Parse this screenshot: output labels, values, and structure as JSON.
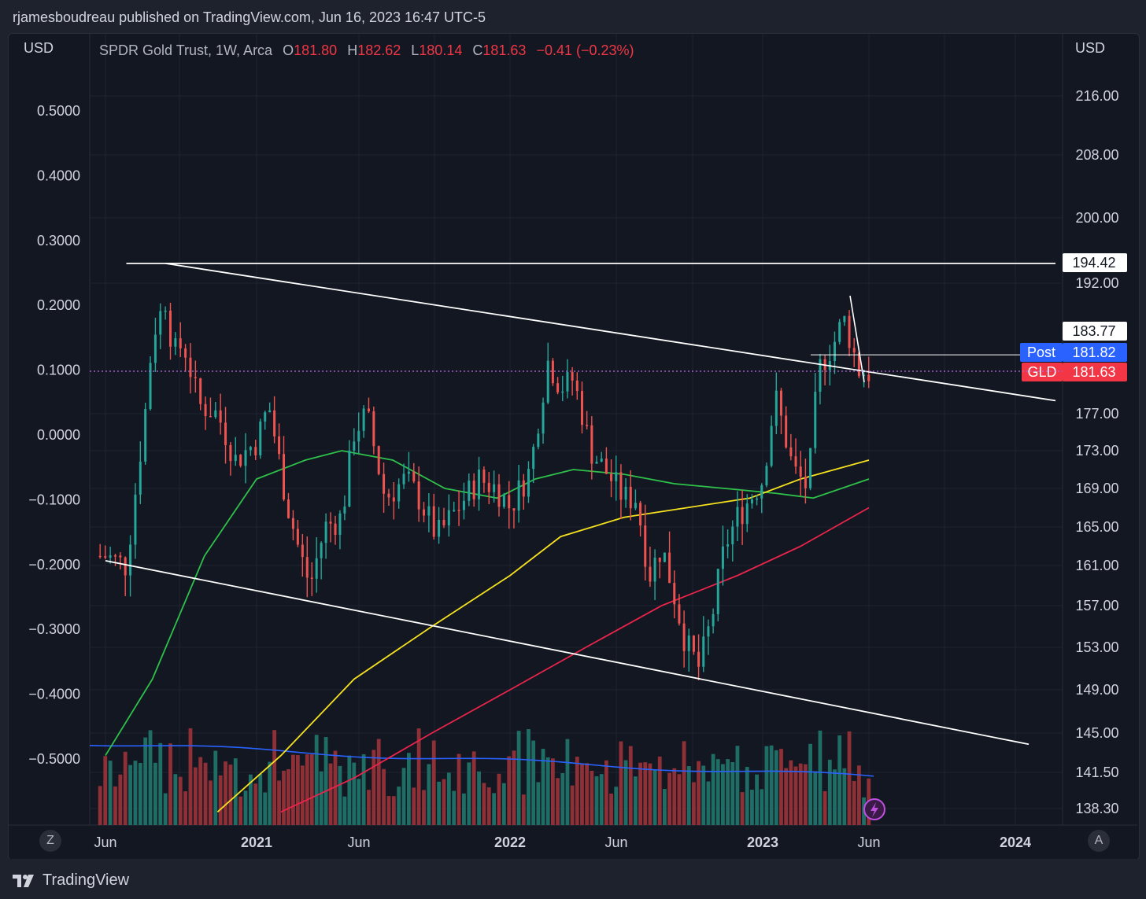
{
  "header": {
    "published_by": "rjamesboudreau published on TradingView.com, Jun 16, 2023 16:47 UTC-5"
  },
  "legend": {
    "symbol": "SPDR Gold Trust, 1W, Arca",
    "o_label": "O",
    "o_value": "181.80",
    "h_label": "H",
    "h_value": "182.62",
    "l_label": "L",
    "l_value": "180.14",
    "c_label": "C",
    "c_value": "181.63",
    "change": "−0.41 (−0.23%)"
  },
  "footer": {
    "brand": "TradingView",
    "left_button": "Z",
    "right_button": "A"
  },
  "colors": {
    "up": "#26a69a",
    "down": "#ef5350",
    "ma_short": "#2ec24a",
    "ma_mid": "#f5e11e",
    "ma_long": "#e9244b",
    "vol_ma": "#2962ff",
    "trend": "#ffffff"
  },
  "chart_data": {
    "type": "candlestick",
    "title": "SPDR Gold Trust, 1W, Arca",
    "right_axis": {
      "label": "USD",
      "ticks": [
        216.0,
        208.0,
        200.0,
        192.0,
        177.0,
        173.0,
        169.0,
        165.0,
        161.0,
        157.0,
        153.0,
        149.0,
        145.0,
        141.5,
        138.3
      ]
    },
    "left_axis": {
      "label": "USD",
      "ticks": [
        "0.5000",
        "0.4000",
        "0.3000",
        "0.2000",
        "0.1000",
        "0.0000",
        "−0.1000",
        "−0.2000",
        "−0.3000",
        "−0.4000",
        "−0.5000"
      ]
    },
    "x_axis": {
      "ticks": [
        "Jun",
        "2021",
        "Jun",
        "2022",
        "Jun",
        "2023",
        "Jun",
        "2024"
      ]
    },
    "price_labels": [
      {
        "name": "level",
        "text": "194.42",
        "value": 194.42
      },
      {
        "name": "level",
        "text": "183.77",
        "value": 183.77
      },
      {
        "name": "Post",
        "text": "181.82",
        "value": 181.82
      },
      {
        "name": "GLD",
        "text": "181.63",
        "value": 181.63
      }
    ],
    "ohlc_close_path": [
      [
        2020.42,
        162
      ],
      [
        2020.5,
        161
      ],
      [
        2020.55,
        172
      ],
      [
        2020.58,
        179
      ],
      [
        2020.6,
        186
      ],
      [
        2020.65,
        190
      ],
      [
        2020.68,
        184
      ],
      [
        2020.72,
        185
      ],
      [
        2020.78,
        178
      ],
      [
        2020.85,
        177
      ],
      [
        2020.92,
        172
      ],
      [
        2021.0,
        174
      ],
      [
        2021.05,
        178
      ],
      [
        2021.12,
        168
      ],
      [
        2021.18,
        162
      ],
      [
        2021.22,
        159
      ],
      [
        2021.28,
        165
      ],
      [
        2021.35,
        166
      ],
      [
        2021.4,
        175
      ],
      [
        2021.45,
        177
      ],
      [
        2021.52,
        168
      ],
      [
        2021.6,
        170
      ],
      [
        2021.65,
        168
      ],
      [
        2021.72,
        164
      ],
      [
        2021.8,
        167
      ],
      [
        2021.88,
        170
      ],
      [
        2021.95,
        169
      ],
      [
        2022.0,
        167
      ],
      [
        2022.08,
        171
      ],
      [
        2022.15,
        183
      ],
      [
        2022.2,
        180
      ],
      [
        2022.25,
        181
      ],
      [
        2022.32,
        173
      ],
      [
        2022.4,
        170
      ],
      [
        2022.45,
        168
      ],
      [
        2022.5,
        168
      ],
      [
        2022.55,
        160
      ],
      [
        2022.6,
        163
      ],
      [
        2022.65,
        158
      ],
      [
        2022.7,
        153
      ],
      [
        2022.75,
        151
      ],
      [
        2022.8,
        156
      ],
      [
        2022.85,
        163
      ],
      [
        2022.9,
        166
      ],
      [
        2022.95,
        168
      ],
      [
        2023.0,
        170
      ],
      [
        2023.05,
        179
      ],
      [
        2023.12,
        171
      ],
      [
        2023.18,
        169
      ],
      [
        2023.22,
        182
      ],
      [
        2023.28,
        185
      ],
      [
        2023.32,
        188
      ],
      [
        2023.35,
        185
      ],
      [
        2023.38,
        182
      ],
      [
        2023.42,
        181.6
      ]
    ],
    "moving_averages": [
      {
        "name": "MA short",
        "points": [
          [
            2020.42,
            143
          ],
          [
            2020.6,
            150
          ],
          [
            2020.8,
            162
          ],
          [
            2021.0,
            170
          ],
          [
            2021.2,
            172
          ],
          [
            2021.35,
            173
          ],
          [
            2021.55,
            172
          ],
          [
            2021.75,
            169
          ],
          [
            2021.95,
            168
          ],
          [
            2022.1,
            170
          ],
          [
            2022.25,
            171
          ],
          [
            2022.45,
            170.5
          ],
          [
            2022.65,
            169.5
          ],
          [
            2022.85,
            169
          ],
          [
            2023.05,
            168.5
          ],
          [
            2023.2,
            168
          ],
          [
            2023.42,
            170
          ]
        ]
      },
      {
        "name": "MA mid",
        "points": [
          [
            2020.85,
            138
          ],
          [
            2021.1,
            143
          ],
          [
            2021.4,
            150
          ],
          [
            2021.7,
            155
          ],
          [
            2022.0,
            160
          ],
          [
            2022.2,
            164
          ],
          [
            2022.45,
            166
          ],
          [
            2022.7,
            167
          ],
          [
            2022.95,
            168
          ],
          [
            2023.15,
            170
          ],
          [
            2023.42,
            172
          ]
        ]
      },
      {
        "name": "MA long",
        "points": [
          [
            2021.1,
            138
          ],
          [
            2021.4,
            141
          ],
          [
            2021.7,
            145
          ],
          [
            2022.0,
            149
          ],
          [
            2022.3,
            153
          ],
          [
            2022.6,
            157
          ],
          [
            2022.9,
            160
          ],
          [
            2023.15,
            163
          ],
          [
            2023.42,
            167
          ]
        ]
      }
    ],
    "trendlines": [
      {
        "name": "horizontal resistance",
        "from": [
          2020.5,
          194.42
        ],
        "to": [
          2024.15,
          194.42
        ]
      },
      {
        "name": "upper descending",
        "from": [
          2020.65,
          194.42
        ],
        "to": [
          2024.15,
          178.5
        ]
      },
      {
        "name": "lower descending",
        "from": [
          2020.42,
          161.5
        ],
        "to": [
          2024.05,
          144
        ]
      }
    ]
  }
}
